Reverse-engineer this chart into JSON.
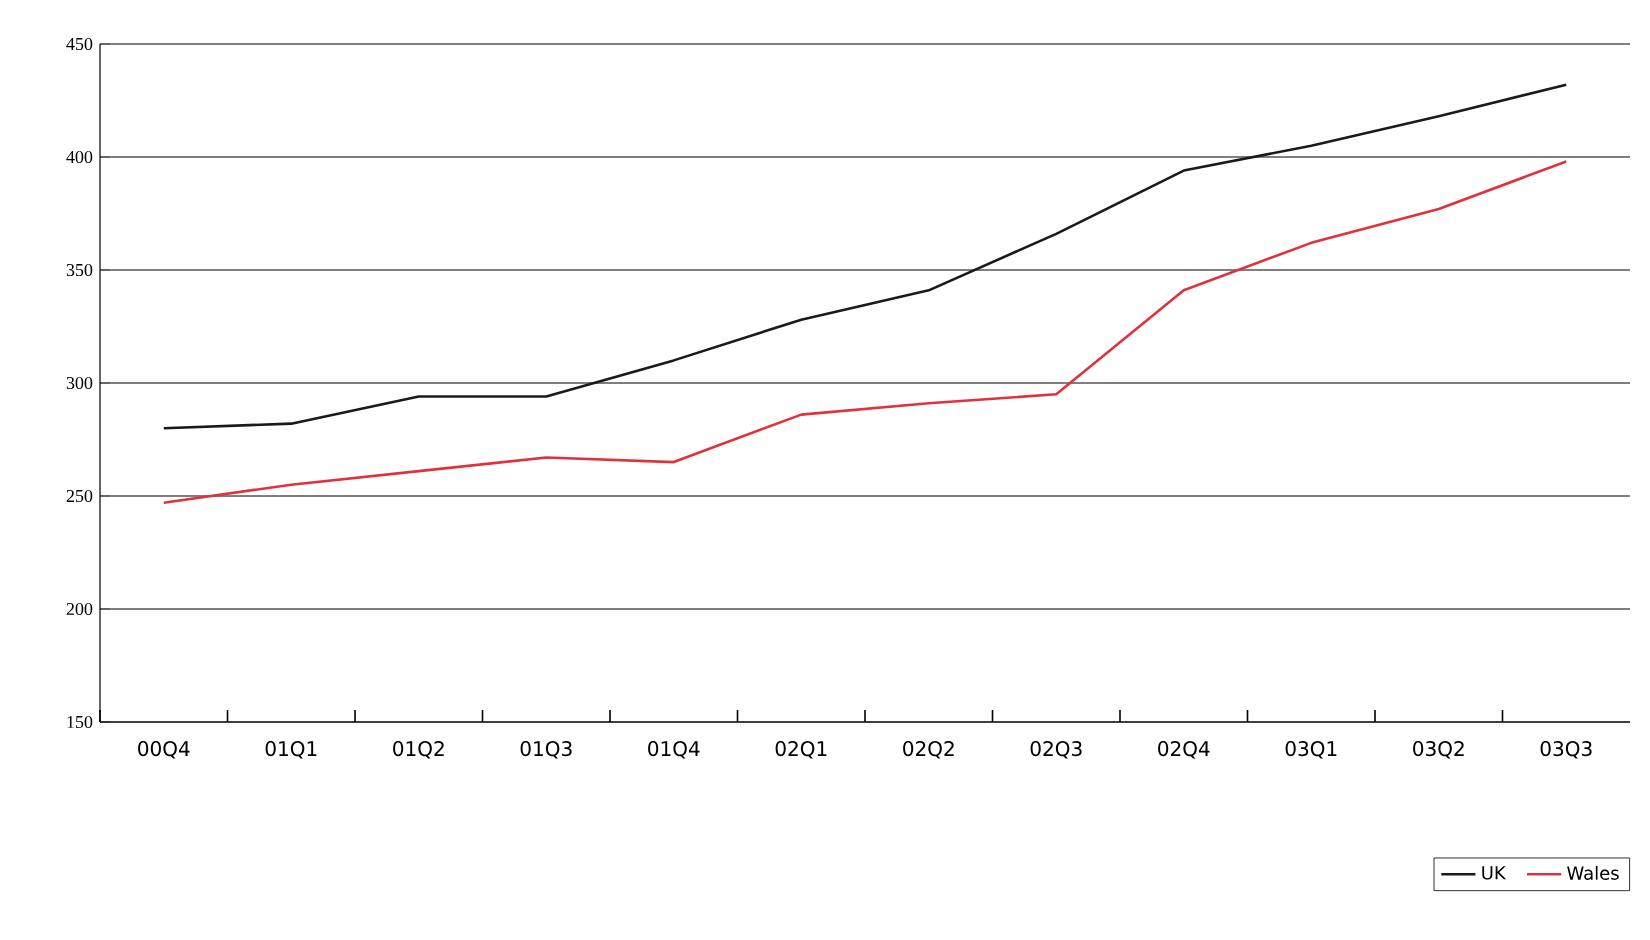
{
  "chart_data": {
    "type": "line",
    "categories": [
      "00Q4",
      "01Q1",
      "01Q2",
      "01Q3",
      "01Q4",
      "02Q1",
      "02Q2",
      "02Q3",
      "02Q4",
      "03Q1",
      "03Q2",
      "03Q3"
    ],
    "series": [
      {
        "name": "UK",
        "color": "#1a1a1a",
        "values": [
          280,
          282,
          294,
          294,
          310,
          328,
          341,
          366,
          394,
          405,
          418,
          432
        ]
      },
      {
        "name": "Wales",
        "color": "#e0323c",
        "values": [
          247,
          255,
          261,
          267,
          265,
          286,
          291,
          295,
          341,
          362,
          377,
          398
        ]
      }
    ],
    "ylim": [
      150,
      450
    ],
    "yticks": [
      150,
      200,
      250,
      300,
      350,
      400,
      450
    ],
    "grid": "y",
    "legend": "bottom right",
    "marker": "none",
    "line_style": "solid"
  }
}
